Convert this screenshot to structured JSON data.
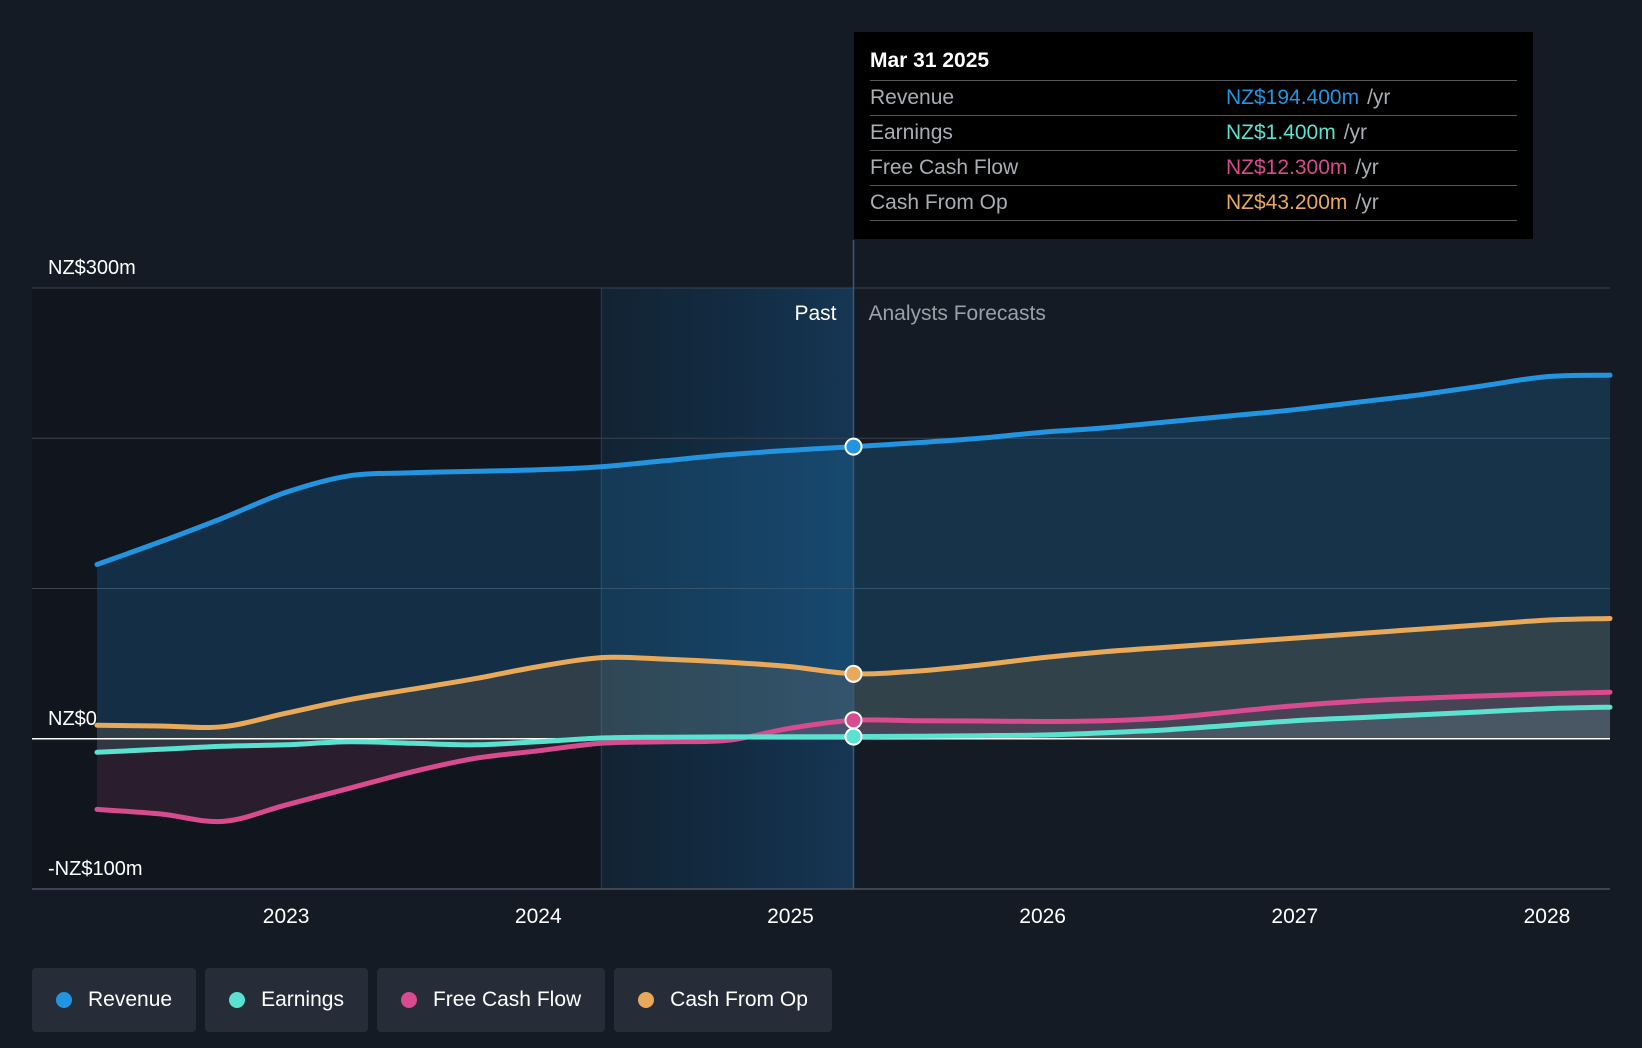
{
  "chart_data": {
    "type": "line",
    "x_range": [
      2022.25,
      2028.25
    ],
    "ylim": [
      -100,
      300
    ],
    "y_ticks": [
      {
        "value": 300,
        "label": "NZ$300m"
      },
      {
        "value": 0,
        "label": "NZ$0"
      },
      {
        "value": -100,
        "label": "-NZ$100m"
      }
    ],
    "gridlines": [
      300,
      200,
      100,
      0,
      -100
    ],
    "x_ticks": [
      {
        "value": 2023,
        "label": "2023"
      },
      {
        "value": 2024,
        "label": "2024"
      },
      {
        "value": 2025,
        "label": "2025"
      },
      {
        "value": 2026,
        "label": "2026"
      },
      {
        "value": 2027,
        "label": "2027"
      },
      {
        "value": 2028,
        "label": "2028"
      }
    ],
    "past_label": "Past",
    "forecast_label": "Analysts Forecasts",
    "forecast_start": 2025.25,
    "highlight_start": 2024.25,
    "series": [
      {
        "name": "Revenue",
        "color": "#2394df",
        "area": true,
        "points": [
          [
            2022.25,
            116
          ],
          [
            2022.5,
            131
          ],
          [
            2022.75,
            147
          ],
          [
            2023.0,
            164
          ],
          [
            2023.25,
            175
          ],
          [
            2023.5,
            177
          ],
          [
            2023.75,
            178
          ],
          [
            2024.0,
            179
          ],
          [
            2024.25,
            181
          ],
          [
            2024.5,
            185
          ],
          [
            2024.75,
            189
          ],
          [
            2025.0,
            192
          ],
          [
            2025.25,
            194.4
          ],
          [
            2025.5,
            197
          ],
          [
            2025.75,
            200
          ],
          [
            2026.0,
            204
          ],
          [
            2026.25,
            207
          ],
          [
            2026.5,
            211
          ],
          [
            2026.75,
            215
          ],
          [
            2027.0,
            219
          ],
          [
            2027.25,
            224
          ],
          [
            2027.5,
            229
          ],
          [
            2027.75,
            235
          ],
          [
            2028.0,
            241
          ],
          [
            2028.25,
            242
          ]
        ]
      },
      {
        "name": "Earnings",
        "color": "#5be1cf",
        "area": true,
        "points": [
          [
            2022.25,
            -9
          ],
          [
            2022.5,
            -7
          ],
          [
            2022.75,
            -5
          ],
          [
            2023.0,
            -4
          ],
          [
            2023.25,
            -2
          ],
          [
            2023.5,
            -3
          ],
          [
            2023.75,
            -4
          ],
          [
            2024.0,
            -2
          ],
          [
            2024.25,
            0.5
          ],
          [
            2024.5,
            1
          ],
          [
            2024.75,
            1.2
          ],
          [
            2025.0,
            1.3
          ],
          [
            2025.25,
            1.4
          ],
          [
            2025.5,
            1.6
          ],
          [
            2025.75,
            2
          ],
          [
            2026.0,
            2.5
          ],
          [
            2026.25,
            4
          ],
          [
            2026.5,
            6
          ],
          [
            2026.75,
            9
          ],
          [
            2027.0,
            12
          ],
          [
            2027.25,
            14
          ],
          [
            2027.5,
            16
          ],
          [
            2027.75,
            18
          ],
          [
            2028.0,
            20
          ],
          [
            2028.25,
            21
          ]
        ]
      },
      {
        "name": "Free Cash Flow",
        "color": "#d84b8f",
        "area": true,
        "points": [
          [
            2022.25,
            -47
          ],
          [
            2022.5,
            -50
          ],
          [
            2022.75,
            -55
          ],
          [
            2023.0,
            -44
          ],
          [
            2023.25,
            -33
          ],
          [
            2023.5,
            -22
          ],
          [
            2023.75,
            -13
          ],
          [
            2024.0,
            -8
          ],
          [
            2024.25,
            -3
          ],
          [
            2024.5,
            -2
          ],
          [
            2024.75,
            -1
          ],
          [
            2025.0,
            7
          ],
          [
            2025.25,
            12.3
          ],
          [
            2025.5,
            12
          ],
          [
            2025.75,
            11.8
          ],
          [
            2026.0,
            11.5
          ],
          [
            2026.25,
            12
          ],
          [
            2026.5,
            14
          ],
          [
            2026.75,
            18
          ],
          [
            2027.0,
            22
          ],
          [
            2027.25,
            25
          ],
          [
            2027.5,
            27
          ],
          [
            2027.75,
            28.5
          ],
          [
            2028.0,
            30
          ],
          [
            2028.25,
            31
          ]
        ]
      },
      {
        "name": "Cash From Op",
        "color": "#e8a95a",
        "area": true,
        "points": [
          [
            2022.25,
            9
          ],
          [
            2022.5,
            8.5
          ],
          [
            2022.75,
            8
          ],
          [
            2023.0,
            17
          ],
          [
            2023.25,
            26
          ],
          [
            2023.5,
            33
          ],
          [
            2023.75,
            40
          ],
          [
            2024.0,
            48
          ],
          [
            2024.25,
            54
          ],
          [
            2024.5,
            53
          ],
          [
            2024.75,
            51
          ],
          [
            2025.0,
            48
          ],
          [
            2025.25,
            43.2
          ],
          [
            2025.5,
            45
          ],
          [
            2025.75,
            49
          ],
          [
            2026.0,
            54
          ],
          [
            2026.25,
            58
          ],
          [
            2026.5,
            61
          ],
          [
            2026.75,
            64
          ],
          [
            2027.0,
            67
          ],
          [
            2027.25,
            70
          ],
          [
            2027.5,
            73
          ],
          [
            2027.75,
            76
          ],
          [
            2028.0,
            79
          ],
          [
            2028.25,
            80
          ]
        ]
      }
    ]
  },
  "tooltip": {
    "date": "Mar 31 2025",
    "rows": [
      {
        "name": "Revenue",
        "value": "NZ$194.400m",
        "unit": "/yr",
        "color": "#2394df"
      },
      {
        "name": "Earnings",
        "value": "NZ$1.400m",
        "unit": "/yr",
        "color": "#5be1cf"
      },
      {
        "name": "Free Cash Flow",
        "value": "NZ$12.300m",
        "unit": "/yr",
        "color": "#d84b8f"
      },
      {
        "name": "Cash From Op",
        "value": "NZ$43.200m",
        "unit": "/yr",
        "color": "#e8a95a"
      }
    ]
  },
  "legend": [
    {
      "label": "Revenue",
      "color": "#2394df"
    },
    {
      "label": "Earnings",
      "color": "#5be1cf"
    },
    {
      "label": "Free Cash Flow",
      "color": "#d84b8f"
    },
    {
      "label": "Cash From Op",
      "color": "#e8a95a"
    }
  ]
}
